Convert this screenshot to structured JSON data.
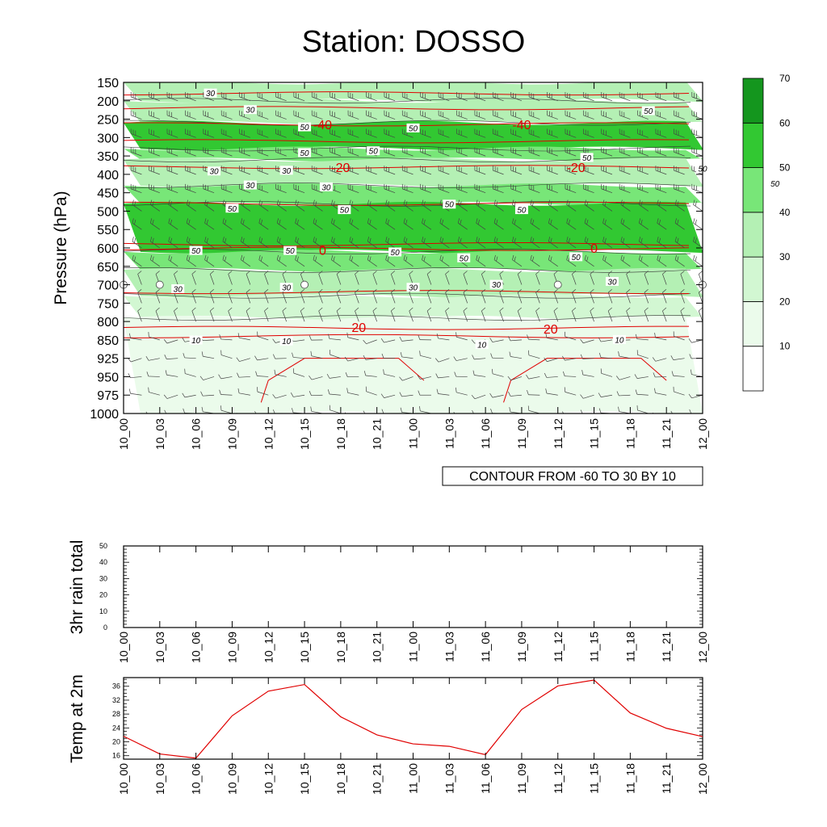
{
  "title": "Station: DOSSO",
  "time_labels": [
    "10_00",
    "10_03",
    "10_06",
    "10_09",
    "10_12",
    "10_15",
    "10_18",
    "10_21",
    "11_00",
    "11_03",
    "11_06",
    "11_09",
    "11_12",
    "11_15",
    "11_18",
    "11_21",
    "12_00"
  ],
  "info_label": "CONTOUR FROM -60 TO 30 BY 10",
  "colors": {
    "rh_levels": [
      "#ffffff",
      "#ebfbeb",
      "#d2f7d2",
      "#b4f0b4",
      "#78e678",
      "#32c832",
      "#14961e"
    ],
    "temperature_line": "#e00000",
    "accent": "#000000"
  },
  "chart_data": [
    {
      "type": "heatmap",
      "panel": "time-pressure cross-section",
      "title": "Station: DOSSO",
      "ylabel": "Pressure (hPa)",
      "y_ticks": [
        150,
        200,
        250,
        300,
        350,
        400,
        450,
        500,
        550,
        600,
        650,
        700,
        750,
        800,
        850,
        925,
        950,
        975,
        1000
      ],
      "y_reversed": true,
      "x_ticks": [
        "10_00",
        "10_03",
        "10_06",
        "10_09",
        "10_12",
        "10_15",
        "10_18",
        "10_21",
        "11_00",
        "11_03",
        "11_06",
        "11_09",
        "11_12",
        "11_15",
        "11_18",
        "11_21",
        "12_00"
      ],
      "colorbar_ticks": [
        10,
        20,
        30,
        40,
        50,
        60,
        70
      ],
      "rh_shading_bands": [
        {
          "p_top": 150,
          "p_bottom": 200,
          "value": 30
        },
        {
          "p_top": 200,
          "p_bottom": 260,
          "value": 35
        },
        {
          "p_top": 260,
          "p_bottom": 330,
          "value": 55
        },
        {
          "p_top": 330,
          "p_bottom": 360,
          "value": 45
        },
        {
          "p_top": 360,
          "p_bottom": 430,
          "value": 30
        },
        {
          "p_top": 430,
          "p_bottom": 480,
          "value": 40
        },
        {
          "p_top": 480,
          "p_bottom": 610,
          "value": 55
        },
        {
          "p_top": 610,
          "p_bottom": 660,
          "value": 45
        },
        {
          "p_top": 660,
          "p_bottom": 730,
          "value": 35
        },
        {
          "p_top": 730,
          "p_bottom": 790,
          "value": 25
        },
        {
          "p_top": 790,
          "p_bottom": 1000,
          "value": 10
        }
      ],
      "rh_contour_labels": [
        {
          "text": "30",
          "time": 2.4,
          "p": 180
        },
        {
          "text": "30",
          "time": 3.5,
          "p": 225
        },
        {
          "text": "50",
          "time": 5.0,
          "p": 272
        },
        {
          "text": "50",
          "time": 8.0,
          "p": 275
        },
        {
          "text": "50",
          "time": 14.5,
          "p": 228
        },
        {
          "text": "50",
          "time": 5.0,
          "p": 342
        },
        {
          "text": "50",
          "time": 6.9,
          "p": 337
        },
        {
          "text": "50",
          "time": 12.8,
          "p": 355
        },
        {
          "text": "50",
          "time": 16.0,
          "p": 385
        },
        {
          "text": "30",
          "time": 2.5,
          "p": 392
        },
        {
          "text": "30",
          "time": 4.5,
          "p": 390
        },
        {
          "text": "30",
          "time": 3.5,
          "p": 430
        },
        {
          "text": "30",
          "time": 5.6,
          "p": 435
        },
        {
          "text": "50",
          "time": 18.0,
          "p": 425
        },
        {
          "text": "50",
          "time": 3.0,
          "p": 493
        },
        {
          "text": "50",
          "time": 6.1,
          "p": 497
        },
        {
          "text": "50",
          "time": 9.0,
          "p": 482
        },
        {
          "text": "50",
          "time": 11.0,
          "p": 497
        },
        {
          "text": "50",
          "time": 2.0,
          "p": 608
        },
        {
          "text": "50",
          "time": 4.6,
          "p": 608
        },
        {
          "text": "50",
          "time": 7.5,
          "p": 612
        },
        {
          "text": "50",
          "time": 9.4,
          "p": 628
        },
        {
          "text": "50",
          "time": 12.5,
          "p": 625
        },
        {
          "text": "30",
          "time": 1.5,
          "p": 712
        },
        {
          "text": "30",
          "time": 4.5,
          "p": 708
        },
        {
          "text": "30",
          "time": 8.0,
          "p": 708
        },
        {
          "text": "30",
          "time": 10.3,
          "p": 700
        },
        {
          "text": "30",
          "time": 13.5,
          "p": 692
        },
        {
          "text": "10",
          "time": 2.0,
          "p": 852
        },
        {
          "text": "10",
          "time": 4.5,
          "p": 856
        },
        {
          "text": "10",
          "time": 9.9,
          "p": 870
        },
        {
          "text": "10",
          "time": 13.7,
          "p": 850
        }
      ],
      "temperature_contour_labels": [
        {
          "text": "-40",
          "time": 5.5,
          "p": 264
        },
        {
          "text": "-40",
          "time": 11.0,
          "p": 264
        },
        {
          "text": "-20",
          "time": 6.0,
          "p": 380
        },
        {
          "text": "-20",
          "time": 12.5,
          "p": 380
        },
        {
          "text": "0",
          "time": 5.5,
          "p": 605
        },
        {
          "text": "0",
          "time": 13.0,
          "p": 600
        },
        {
          "text": "20",
          "time": 6.5,
          "p": 815
        },
        {
          "text": "20",
          "time": 11.8,
          "p": 820
        }
      ],
      "calm_wind_markers": [
        {
          "time": 0.0,
          "p": 700
        },
        {
          "time": 1.0,
          "p": 700
        },
        {
          "time": 5.0,
          "p": 700
        },
        {
          "time": 12.0,
          "p": 700
        },
        {
          "time": 16.0,
          "p": 700
        }
      ]
    },
    {
      "type": "line",
      "panel": "rain",
      "ylabel": "3hr rain total",
      "ylim": [
        0,
        50
      ],
      "y_ticks": [
        0,
        10,
        20,
        30,
        40,
        50
      ],
      "x": [
        "10_00",
        "10_03",
        "10_06",
        "10_09",
        "10_12",
        "10_15",
        "10_18",
        "10_21",
        "11_00",
        "11_03",
        "11_06",
        "11_09",
        "11_12",
        "11_15",
        "11_18",
        "11_21",
        "12_00"
      ],
      "values": [
        0,
        0,
        0,
        0,
        0,
        0,
        0,
        0,
        0,
        0,
        0,
        0,
        0,
        0,
        0,
        0,
        0
      ]
    },
    {
      "type": "line",
      "panel": "temperature",
      "ylabel": "Temp at 2m",
      "ylim": [
        15,
        38.5
      ],
      "y_ticks": [
        16,
        20,
        24,
        28,
        32,
        36
      ],
      "x": [
        "10_00",
        "10_03",
        "10_06",
        "10_09",
        "10_12",
        "10_15",
        "10_18",
        "10_21",
        "11_00",
        "11_03",
        "11_06",
        "11_09",
        "11_12",
        "11_15",
        "11_18",
        "11_21",
        "12_00"
      ],
      "values": [
        21.6,
        16.5,
        15.3,
        27.5,
        34.6,
        36.5,
        27.2,
        22.0,
        19.4,
        18.7,
        16.3,
        29.3,
        36.1,
        37.8,
        28.3,
        23.9,
        21.5
      ]
    }
  ]
}
